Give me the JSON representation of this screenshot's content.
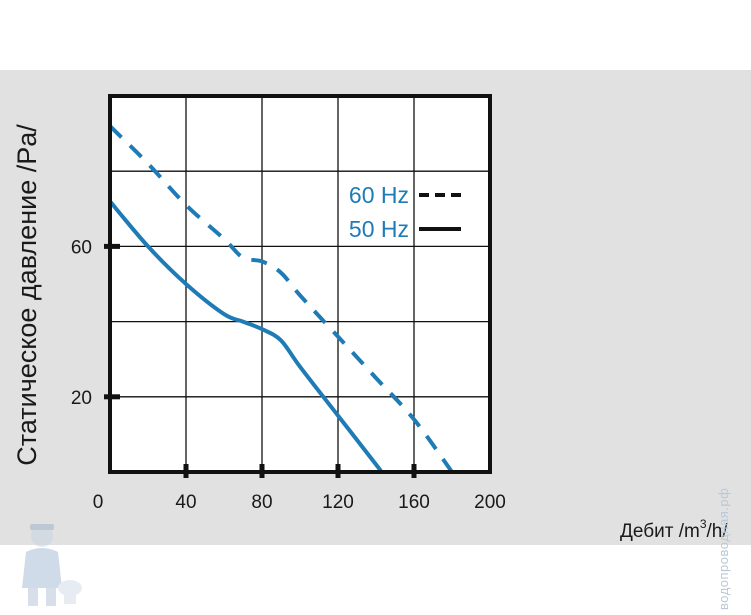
{
  "chart_data": {
    "type": "line",
    "ylabel": "Статическое давление /Pa/",
    "xlabel_prefix": "Дебит /m",
    "xlabel_sup": "3",
    "xlabel_suffix": "/h/",
    "xlim": [
      0,
      200
    ],
    "ylim": [
      0,
      100
    ],
    "x_ticks": [
      0,
      40,
      80,
      120,
      160,
      200
    ],
    "y_ticks": [
      20,
      60
    ],
    "grid": true,
    "legend_position": "top-right",
    "series": [
      {
        "name": "60 Hz",
        "style": "dashed",
        "color": "#1f7bb5",
        "x": [
          0,
          20,
          40,
          60,
          70,
          80,
          90,
          100,
          120,
          140,
          160,
          180
        ],
        "y": [
          92,
          82,
          71,
          62,
          57,
          56,
          53,
          47,
          36,
          25,
          14,
          0
        ]
      },
      {
        "name": "50 Hz",
        "style": "solid",
        "color": "#1f7bb5",
        "x": [
          0,
          20,
          40,
          60,
          70,
          80,
          90,
          100,
          120,
          140,
          143
        ],
        "y": [
          72,
          60,
          50,
          42,
          40,
          38,
          35,
          28,
          15,
          2,
          0
        ]
      }
    ]
  },
  "watermark": {
    "text": "водопроводная.рф",
    "icon": "plumber-mascot-icon"
  }
}
